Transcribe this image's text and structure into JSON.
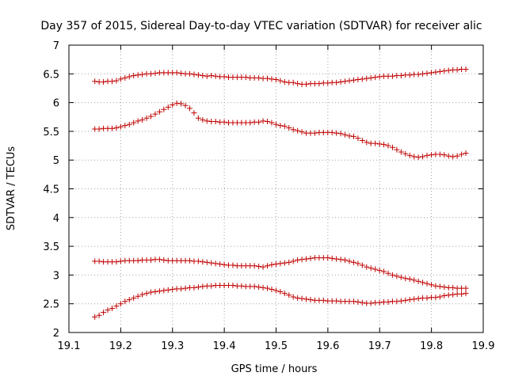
{
  "chart_data": {
    "type": "scatter",
    "title": "Day 357 of 2015, Sidereal Day-to-day VTEC variation (SDTVAR) for receiver alic",
    "xlabel": "GPS time / hours",
    "ylabel": "SDTVAR / TECUs",
    "xlim": [
      19.1,
      19.9
    ],
    "ylim": [
      2,
      7
    ],
    "xticks": [
      "19.1",
      "19.2",
      "19.3",
      "19.4",
      "19.5",
      "19.6",
      "19.7",
      "19.8",
      "19.9"
    ],
    "yticks": [
      "2",
      "2.5",
      "3",
      "3.5",
      "4",
      "4.5",
      "5",
      "5.5",
      "6",
      "6.5",
      "7"
    ],
    "grid": true,
    "marker": "+",
    "color": "#c00000",
    "x_start": 19.15,
    "x_step": 0.00833,
    "series": [
      {
        "name": "series-1",
        "values": [
          6.37,
          6.36,
          6.36,
          6.37,
          6.37,
          6.38,
          6.41,
          6.43,
          6.45,
          6.47,
          6.48,
          6.49,
          6.5,
          6.5,
          6.51,
          6.52,
          6.52,
          6.52,
          6.52,
          6.52,
          6.51,
          6.5,
          6.5,
          6.49,
          6.48,
          6.47,
          6.46,
          6.47,
          6.46,
          6.45,
          6.45,
          6.44,
          6.44,
          6.44,
          6.44,
          6.44,
          6.43,
          6.43,
          6.43,
          6.42,
          6.42,
          6.41,
          6.4,
          6.38,
          6.36,
          6.35,
          6.35,
          6.33,
          6.32,
          6.32,
          6.33,
          6.33,
          6.33,
          6.34,
          6.34,
          6.35,
          6.35,
          6.36,
          6.37,
          6.38,
          6.39,
          6.4,
          6.41,
          6.42,
          6.43,
          6.44,
          6.45,
          6.46,
          6.46,
          6.46,
          6.47,
          6.47,
          6.48,
          6.48,
          6.49,
          6.49,
          6.5,
          6.51,
          6.52,
          6.53,
          6.54,
          6.55,
          6.56,
          6.57,
          6.57,
          6.58,
          6.58
        ]
      },
      {
        "name": "series-2",
        "values": [
          5.54,
          5.54,
          5.55,
          5.55,
          5.55,
          5.56,
          5.58,
          5.6,
          5.62,
          5.65,
          5.68,
          5.7,
          5.73,
          5.76,
          5.8,
          5.84,
          5.88,
          5.92,
          5.96,
          5.99,
          5.98,
          5.95,
          5.9,
          5.82,
          5.73,
          5.7,
          5.68,
          5.67,
          5.67,
          5.66,
          5.66,
          5.65,
          5.65,
          5.65,
          5.65,
          5.65,
          5.65,
          5.66,
          5.66,
          5.68,
          5.67,
          5.65,
          5.62,
          5.6,
          5.59,
          5.56,
          5.53,
          5.51,
          5.49,
          5.47,
          5.47,
          5.47,
          5.48,
          5.48,
          5.48,
          5.48,
          5.47,
          5.46,
          5.44,
          5.42,
          5.41,
          5.38,
          5.34,
          5.31,
          5.29,
          5.29,
          5.28,
          5.27,
          5.25,
          5.22,
          5.18,
          5.14,
          5.11,
          5.08,
          5.06,
          5.05,
          5.06,
          5.08,
          5.09,
          5.1,
          5.1,
          5.09,
          5.07,
          5.06,
          5.07,
          5.1,
          5.12
        ]
      },
      {
        "name": "series-3",
        "values": [
          3.24,
          3.24,
          3.23,
          3.23,
          3.23,
          3.23,
          3.24,
          3.25,
          3.25,
          3.25,
          3.25,
          3.26,
          3.26,
          3.26,
          3.27,
          3.27,
          3.26,
          3.25,
          3.25,
          3.25,
          3.25,
          3.25,
          3.25,
          3.24,
          3.24,
          3.23,
          3.22,
          3.21,
          3.2,
          3.19,
          3.18,
          3.17,
          3.17,
          3.16,
          3.16,
          3.16,
          3.16,
          3.16,
          3.15,
          3.14,
          3.16,
          3.18,
          3.19,
          3.2,
          3.21,
          3.22,
          3.24,
          3.26,
          3.27,
          3.28,
          3.29,
          3.3,
          3.3,
          3.3,
          3.3,
          3.29,
          3.28,
          3.27,
          3.26,
          3.24,
          3.22,
          3.2,
          3.17,
          3.14,
          3.12,
          3.1,
          3.08,
          3.06,
          3.03,
          3.0,
          2.98,
          2.96,
          2.94,
          2.93,
          2.91,
          2.89,
          2.87,
          2.85,
          2.83,
          2.81,
          2.8,
          2.79,
          2.78,
          2.78,
          2.77,
          2.77,
          2.77
        ]
      },
      {
        "name": "series-4",
        "values": [
          2.27,
          2.3,
          2.35,
          2.39,
          2.42,
          2.46,
          2.5,
          2.54,
          2.57,
          2.6,
          2.63,
          2.66,
          2.68,
          2.7,
          2.71,
          2.72,
          2.73,
          2.74,
          2.75,
          2.76,
          2.76,
          2.77,
          2.78,
          2.78,
          2.79,
          2.8,
          2.81,
          2.81,
          2.82,
          2.82,
          2.82,
          2.82,
          2.82,
          2.81,
          2.81,
          2.8,
          2.8,
          2.8,
          2.79,
          2.78,
          2.77,
          2.75,
          2.73,
          2.71,
          2.68,
          2.65,
          2.62,
          2.6,
          2.59,
          2.58,
          2.57,
          2.56,
          2.56,
          2.56,
          2.55,
          2.55,
          2.55,
          2.54,
          2.54,
          2.54,
          2.54,
          2.53,
          2.52,
          2.51,
          2.51,
          2.52,
          2.52,
          2.53,
          2.53,
          2.54,
          2.54,
          2.55,
          2.56,
          2.57,
          2.58,
          2.59,
          2.6,
          2.6,
          2.61,
          2.61,
          2.62,
          2.64,
          2.65,
          2.66,
          2.67,
          2.67,
          2.68
        ]
      }
    ]
  }
}
